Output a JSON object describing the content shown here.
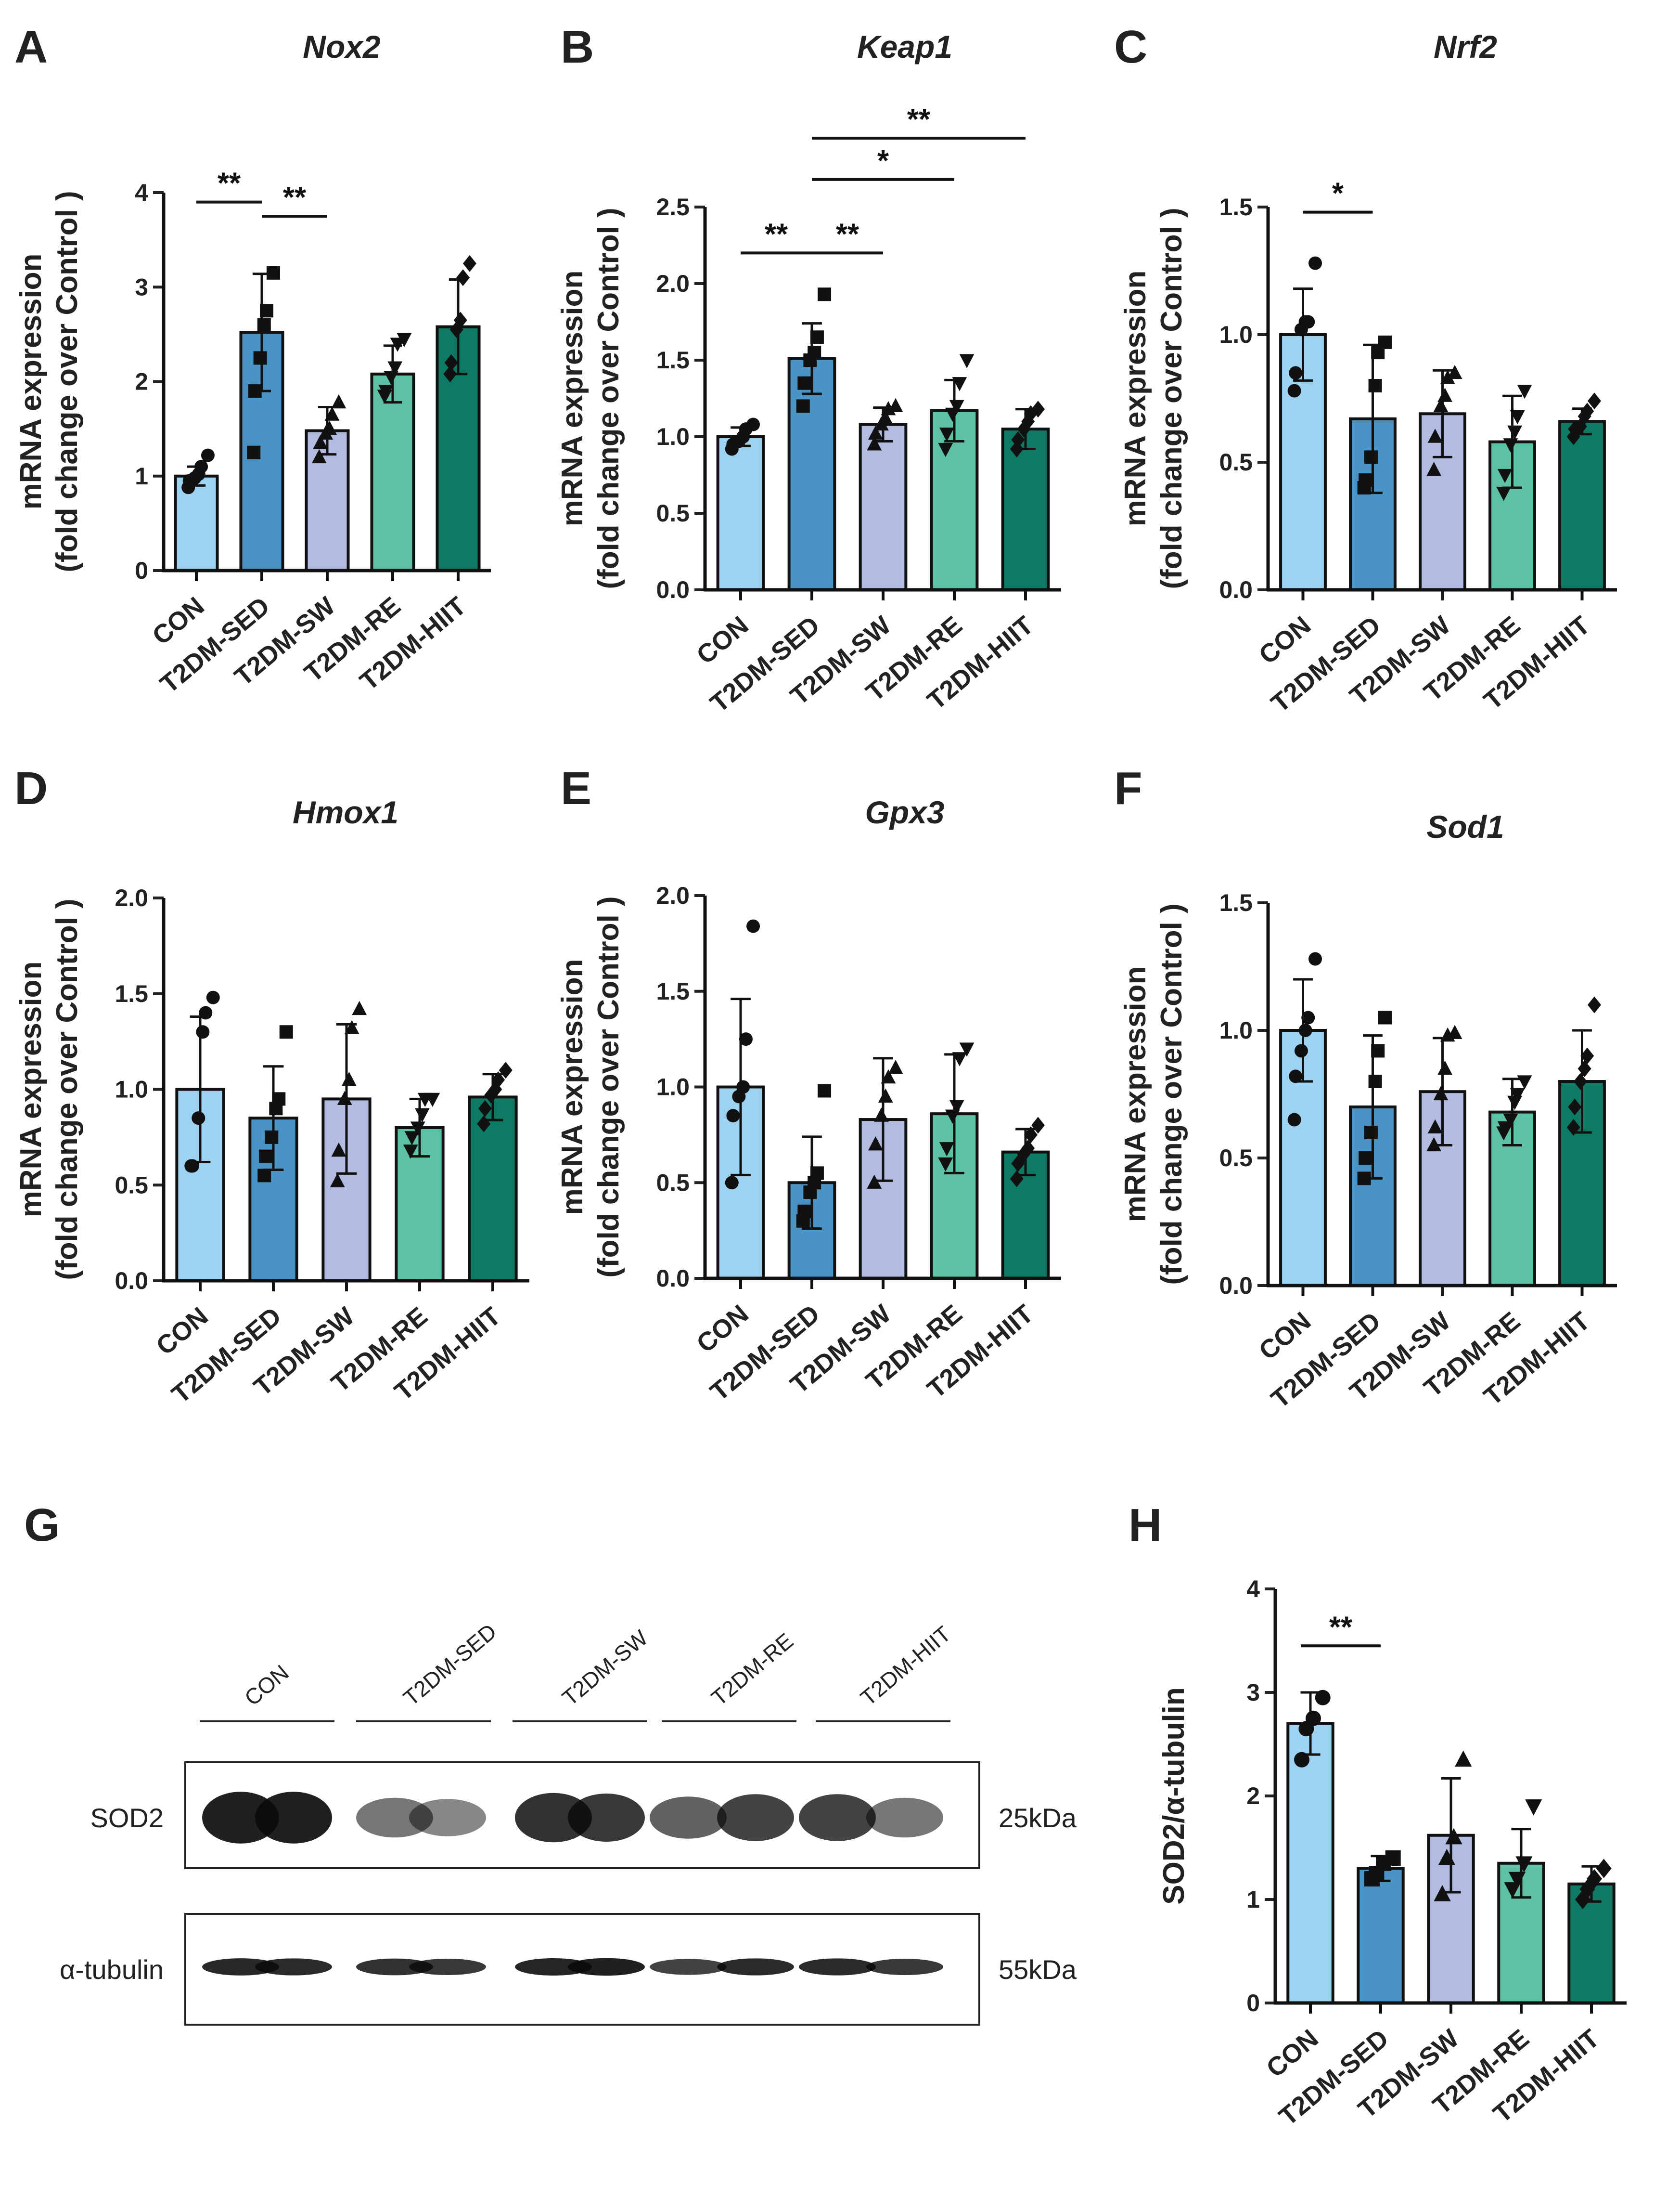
{
  "figure": {
    "panel_letters": [
      "A",
      "B",
      "C",
      "D",
      "E",
      "F",
      "G",
      "H"
    ],
    "western_blot": {
      "groups": [
        "CON",
        "T2DM-SED",
        "T2DM-SW",
        "T2DM-RE",
        "T2DM-HIIT"
      ],
      "rows": [
        {
          "label": "SOD2",
          "size": "25kDa",
          "intensity": [
            0.95,
            0.95,
            0.45,
            0.35,
            0.85,
            0.8,
            0.55,
            0.75,
            0.75,
            0.45
          ]
        },
        {
          "label": "α-tubulin",
          "size": "55kDa",
          "intensity": [
            0.9,
            0.88,
            0.85,
            0.8,
            0.92,
            0.95,
            0.75,
            0.88,
            0.88,
            0.8
          ]
        }
      ]
    },
    "colors": [
      "#9dd3f0",
      "#4a93c5",
      "#b2bce0",
      "#5cc2a3",
      "#0d7a63"
    ]
  },
  "chart_data": [
    {
      "panel": "A",
      "type": "bar",
      "title": "Nox2",
      "ylabel_lines": [
        "mRNA expression",
        "(fold change over Control )"
      ],
      "categories": [
        "CON",
        "T2DM-SED",
        "T2DM-SW",
        "T2DM-RE",
        "T2DM-HIIT"
      ],
      "ylim": [
        0,
        4
      ],
      "yticks": [
        0,
        1,
        2,
        3,
        4
      ],
      "yticklabels": [
        "0",
        "1",
        "2",
        "3",
        "4"
      ],
      "values": [
        1.0,
        2.52,
        1.48,
        2.08,
        2.58
      ],
      "sd": [
        0.1,
        0.62,
        0.25,
        0.3,
        0.5
      ],
      "points": [
        [
          0.88,
          0.95,
          0.98,
          1.02,
          1.1,
          1.22
        ],
        [
          1.25,
          1.9,
          2.25,
          2.6,
          2.75,
          3.15
        ],
        [
          1.2,
          1.35,
          1.45,
          1.5,
          1.65,
          1.78
        ],
        [
          1.85,
          1.9,
          2.05,
          2.15,
          2.4,
          2.45
        ],
        [
          2.08,
          2.2,
          2.55,
          2.65,
          3.1,
          3.25
        ]
      ],
      "markers": [
        "circle",
        "square",
        "triangle",
        "invtriangle",
        "diamond"
      ],
      "sig": [
        {
          "from": 0,
          "to": 1,
          "y": 3.9,
          "label": "**"
        },
        {
          "from": 1,
          "to": 2,
          "y": 3.75,
          "label": "**"
        }
      ]
    },
    {
      "panel": "B",
      "type": "bar",
      "title": "Keap1",
      "ylabel_lines": [
        "mRNA expression",
        "(fold change over Control )"
      ],
      "categories": [
        "CON",
        "T2DM-SED",
        "T2DM-SW",
        "T2DM-RE",
        "T2DM-HIIT"
      ],
      "ylim": [
        0,
        2.5
      ],
      "yticks": [
        0,
        0.5,
        1,
        1.5,
        2,
        2.5
      ],
      "yticklabels": [
        "0.0",
        "0.5",
        "1.0",
        "1.5",
        "2.0",
        "2.5"
      ],
      "values": [
        1.0,
        1.51,
        1.08,
        1.17,
        1.05
      ],
      "sd": [
        0.06,
        0.23,
        0.11,
        0.2,
        0.13
      ],
      "points": [
        [
          0.92,
          0.95,
          0.97,
          1.0,
          1.05,
          1.08
        ],
        [
          1.2,
          1.35,
          1.5,
          1.55,
          1.65,
          1.93
        ],
        [
          0.95,
          1.02,
          1.08,
          1.12,
          1.18,
          1.2
        ],
        [
          0.92,
          1.02,
          1.15,
          1.2,
          1.35,
          1.5
        ],
        [
          0.92,
          0.98,
          1.05,
          1.1,
          1.15,
          1.18
        ]
      ],
      "markers": [
        "circle",
        "square",
        "triangle",
        "invtriangle",
        "diamond"
      ],
      "sig": [
        {
          "from": 0,
          "to": 1,
          "y": 2.2,
          "label": "**"
        },
        {
          "from": 1,
          "to": 2,
          "y": 2.2,
          "label": "**"
        },
        {
          "from": 1,
          "to": 3,
          "y": 2.68,
          "label": "*"
        },
        {
          "from": 1,
          "to": 4,
          "y": 2.95,
          "label": "**"
        }
      ]
    },
    {
      "panel": "C",
      "type": "bar",
      "title": "Nrf2",
      "ylabel_lines": [
        "mRNA expression",
        "(fold change over Control )"
      ],
      "categories": [
        "CON",
        "T2DM-SED",
        "T2DM-SW",
        "T2DM-RE",
        "T2DM-HIIT"
      ],
      "ylim": [
        0,
        1.5
      ],
      "yticks": [
        0,
        0.5,
        1,
        1.5
      ],
      "yticklabels": [
        "0.0",
        "0.5",
        "1.0",
        "1.5"
      ],
      "values": [
        1.0,
        0.67,
        0.69,
        0.58,
        0.66
      ],
      "sd": [
        0.18,
        0.29,
        0.17,
        0.18,
        0.05
      ],
      "points": [
        [
          0.78,
          0.85,
          1.02,
          1.05,
          1.05,
          1.28
        ],
        [
          0.4,
          0.43,
          0.52,
          0.8,
          0.93,
          0.97
        ],
        [
          0.47,
          0.6,
          0.72,
          0.76,
          0.83,
          0.85
        ],
        [
          0.38,
          0.45,
          0.57,
          0.62,
          0.68,
          0.78
        ],
        [
          0.6,
          0.63,
          0.64,
          0.68,
          0.7,
          0.74
        ]
      ],
      "markers": [
        "circle",
        "square",
        "triangle",
        "invtriangle",
        "diamond"
      ],
      "sig": [
        {
          "from": 0,
          "to": 1,
          "y": 1.48,
          "label": "*"
        }
      ]
    },
    {
      "panel": "D",
      "type": "bar",
      "title": "Hmox1",
      "ylabel_lines": [
        "mRNA expression",
        "(fold change over Control )"
      ],
      "categories": [
        "CON",
        "T2DM-SED",
        "T2DM-SW",
        "T2DM-RE",
        "T2DM-HIIT"
      ],
      "ylim": [
        0,
        2
      ],
      "yticks": [
        0,
        0.5,
        1,
        1.5,
        2
      ],
      "yticklabels": [
        "0.0",
        "0.5",
        "1.0",
        "1.5",
        "2.0"
      ],
      "values": [
        1.0,
        0.85,
        0.95,
        0.8,
        0.96
      ],
      "sd": [
        0.38,
        0.27,
        0.39,
        0.15,
        0.12
      ],
      "points": [
        [
          0.6,
          0.6,
          0.85,
          1.3,
          1.4,
          1.48
        ],
        [
          0.55,
          0.65,
          0.75,
          0.9,
          0.95,
          1.3
        ],
        [
          0.52,
          0.68,
          0.95,
          1.05,
          1.32,
          1.42
        ],
        [
          0.68,
          0.75,
          0.8,
          0.87,
          0.95,
          0.95
        ],
        [
          0.82,
          0.9,
          0.97,
          1.0,
          1.05,
          1.1
        ]
      ],
      "markers": [
        "circle",
        "square",
        "triangle",
        "invtriangle",
        "diamond"
      ],
      "sig": []
    },
    {
      "panel": "E",
      "type": "bar",
      "title": "Gpx3",
      "ylabel_lines": [
        "mRNA expression",
        "(fold change over Control )"
      ],
      "categories": [
        "CON",
        "T2DM-SED",
        "T2DM-SW",
        "T2DM-RE",
        "T2DM-HIIT"
      ],
      "ylim": [
        0,
        2
      ],
      "yticks": [
        0,
        0.5,
        1,
        1.5,
        2
      ],
      "yticklabels": [
        "0.0",
        "0.5",
        "1.0",
        "1.5",
        "2.0"
      ],
      "values": [
        1.0,
        0.5,
        0.83,
        0.86,
        0.66
      ],
      "sd": [
        0.46,
        0.24,
        0.32,
        0.31,
        0.12
      ],
      "points": [
        [
          0.5,
          0.85,
          0.95,
          1.0,
          1.25,
          1.84
        ],
        [
          0.3,
          0.35,
          0.45,
          0.5,
          0.55,
          0.98
        ],
        [
          0.5,
          0.7,
          0.85,
          0.95,
          1.05,
          1.1
        ],
        [
          0.6,
          0.68,
          0.85,
          0.9,
          1.15,
          1.2
        ],
        [
          0.52,
          0.6,
          0.65,
          0.68,
          0.75,
          0.8
        ]
      ],
      "markers": [
        "circle",
        "square",
        "triangle",
        "invtriangle",
        "diamond"
      ],
      "sig": []
    },
    {
      "panel": "F",
      "type": "bar",
      "title": "Sod1",
      "ylabel_lines": [
        "mRNA expression",
        "(fold change over Control )"
      ],
      "categories": [
        "CON",
        "T2DM-SED",
        "T2DM-SW",
        "T2DM-RE",
        "T2DM-HIIT"
      ],
      "ylim": [
        0,
        1.5
      ],
      "yticks": [
        0,
        0.5,
        1,
        1.5
      ],
      "yticklabels": [
        "0.0",
        "0.5",
        "1.0",
        "1.5"
      ],
      "values": [
        1.0,
        0.7,
        0.76,
        0.68,
        0.8
      ],
      "sd": [
        0.2,
        0.28,
        0.21,
        0.13,
        0.2
      ],
      "points": [
        [
          0.65,
          0.82,
          0.92,
          1.0,
          1.05,
          1.28
        ],
        [
          0.42,
          0.5,
          0.6,
          0.8,
          0.92,
          1.05
        ],
        [
          0.55,
          0.62,
          0.75,
          0.85,
          0.98,
          0.99
        ],
        [
          0.6,
          0.62,
          0.65,
          0.72,
          0.75,
          0.8
        ],
        [
          0.62,
          0.7,
          0.8,
          0.85,
          0.9,
          1.1
        ]
      ],
      "markers": [
        "circle",
        "square",
        "triangle",
        "invtriangle",
        "diamond"
      ],
      "sig": []
    },
    {
      "panel": "H",
      "type": "bar",
      "title": "",
      "ylabel_lines": [
        "SOD2/α-tubulin"
      ],
      "categories": [
        "CON",
        "T2DM-SED",
        "T2DM-SW",
        "T2DM-RE",
        "T2DM-HIIT"
      ],
      "ylim": [
        0,
        4
      ],
      "yticks": [
        0,
        1,
        2,
        3,
        4
      ],
      "yticklabels": [
        "0",
        "1",
        "2",
        "3",
        "4"
      ],
      "values": [
        2.7,
        1.3,
        1.62,
        1.35,
        1.15
      ],
      "sd": [
        0.3,
        0.12,
        0.55,
        0.33,
        0.17
      ],
      "points": [
        [
          2.35,
          2.65,
          2.75,
          2.95
        ],
        [
          1.2,
          1.25,
          1.35,
          1.4
        ],
        [
          1.05,
          1.4,
          1.6,
          2.35
        ],
        [
          1.1,
          1.2,
          1.35,
          1.9
        ],
        [
          1.0,
          1.1,
          1.2,
          1.3
        ]
      ],
      "markers": [
        "circle",
        "square",
        "triangle",
        "invtriangle",
        "diamond"
      ],
      "sig": [
        {
          "from": 0,
          "to": 1,
          "y": 3.45,
          "label": "**"
        }
      ]
    }
  ]
}
